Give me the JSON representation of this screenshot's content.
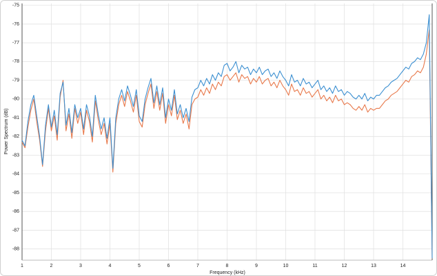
{
  "chart_data": {
    "type": "line",
    "xlabel": "Frequency (kHz)",
    "ylabel": "Power Spectrum (dB)",
    "x": [
      1.0,
      1.1,
      1.2,
      1.3,
      1.4,
      1.5,
      1.6,
      1.7,
      1.8,
      1.9,
      2.0,
      2.1,
      2.2,
      2.3,
      2.4,
      2.5,
      2.6,
      2.7,
      2.8,
      2.9,
      3.0,
      3.1,
      3.2,
      3.3,
      3.4,
      3.5,
      3.6,
      3.7,
      3.8,
      3.9,
      4.0,
      4.1,
      4.2,
      4.3,
      4.4,
      4.5,
      4.6,
      4.7,
      4.8,
      4.9,
      5.0,
      5.1,
      5.2,
      5.3,
      5.4,
      5.5,
      5.6,
      5.7,
      5.8,
      5.9,
      6.0,
      6.1,
      6.2,
      6.3,
      6.4,
      6.5,
      6.6,
      6.7,
      6.8,
      6.9,
      7.0,
      7.1,
      7.2,
      7.3,
      7.4,
      7.5,
      7.6,
      7.7,
      7.8,
      7.9,
      8.0,
      8.1,
      8.2,
      8.3,
      8.4,
      8.5,
      8.6,
      8.7,
      8.8,
      8.9,
      9.0,
      9.1,
      9.2,
      9.3,
      9.4,
      9.5,
      9.6,
      9.7,
      9.8,
      9.9,
      10.0,
      10.1,
      10.2,
      10.3,
      10.4,
      10.5,
      10.6,
      10.7,
      10.8,
      10.9,
      11.0,
      11.1,
      11.2,
      11.3,
      11.4,
      11.5,
      11.6,
      11.7,
      11.8,
      11.9,
      12.0,
      12.1,
      12.2,
      12.3,
      12.4,
      12.5,
      12.6,
      12.7,
      12.8,
      12.9,
      13.0,
      13.1,
      13.2,
      13.3,
      13.4,
      13.5,
      13.6,
      13.7,
      13.8,
      13.9,
      14.0,
      14.1,
      14.2,
      14.3,
      14.4,
      14.5,
      14.6,
      14.7,
      14.8,
      14.9,
      15.0
    ],
    "series": [
      {
        "color": "#3b8fd1",
        "values": [
          -82.2,
          -82.5,
          -81.2,
          -80.3,
          -79.8,
          -80.9,
          -82.0,
          -83.5,
          -81.4,
          -80.3,
          -81.5,
          -80.6,
          -81.9,
          -79.7,
          -79.1,
          -81.4,
          -80.5,
          -81.8,
          -80.3,
          -81.0,
          -80.5,
          -81.6,
          -80.3,
          -80.9,
          -82.0,
          -79.8,
          -80.8,
          -81.6,
          -81.0,
          -82.1,
          -81.0,
          -83.7,
          -81.0,
          -80.0,
          -79.5,
          -80.1,
          -79.3,
          -79.8,
          -80.4,
          -79.5,
          -80.9,
          -81.2,
          -80.0,
          -79.4,
          -78.9,
          -80.2,
          -79.3,
          -80.3,
          -79.4,
          -81.0,
          -80.0,
          -80.6,
          -79.5,
          -80.8,
          -80.3,
          -81.0,
          -80.5,
          -81.2,
          -79.9,
          -79.5,
          -79.4,
          -79.0,
          -79.3,
          -78.9,
          -79.2,
          -78.7,
          -79.0,
          -78.6,
          -78.8,
          -78.2,
          -78.1,
          -78.5,
          -78.3,
          -78.0,
          -78.6,
          -78.2,
          -78.4,
          -78.3,
          -78.7,
          -78.4,
          -78.6,
          -78.3,
          -78.7,
          -78.5,
          -78.4,
          -78.8,
          -78.6,
          -78.9,
          -78.5,
          -78.8,
          -79.0,
          -79.3,
          -78.7,
          -79.1,
          -79.0,
          -79.3,
          -78.9,
          -79.2,
          -79.1,
          -79.4,
          -79.2,
          -79.0,
          -79.5,
          -79.3,
          -79.6,
          -79.4,
          -79.7,
          -79.3,
          -79.6,
          -79.5,
          -79.8,
          -79.6,
          -79.7,
          -79.9,
          -80.0,
          -79.8,
          -80.0,
          -79.7,
          -80.1,
          -79.9,
          -80.0,
          -79.8,
          -79.8,
          -79.6,
          -79.4,
          -79.3,
          -79.1,
          -79.0,
          -78.9,
          -78.7,
          -78.5,
          -78.3,
          -78.4,
          -78.1,
          -78.0,
          -77.8,
          -77.9,
          -77.6,
          -77.0,
          -75.5,
          -88.5
        ]
      },
      {
        "color": "#e8784a",
        "values": [
          -82.3,
          -82.6,
          -81.5,
          -80.6,
          -80.0,
          -81.2,
          -82.2,
          -83.6,
          -81.7,
          -80.5,
          -81.7,
          -80.9,
          -82.2,
          -79.9,
          -79.0,
          -81.7,
          -80.8,
          -82.1,
          -80.5,
          -81.3,
          -80.7,
          -81.9,
          -80.6,
          -81.2,
          -82.3,
          -80.1,
          -81.1,
          -81.9,
          -81.3,
          -82.4,
          -81.3,
          -83.9,
          -81.3,
          -80.3,
          -79.8,
          -80.4,
          -79.6,
          -80.1,
          -80.7,
          -79.8,
          -81.2,
          -81.5,
          -80.3,
          -79.7,
          -79.2,
          -80.5,
          -79.6,
          -80.6,
          -79.7,
          -81.3,
          -80.3,
          -80.9,
          -79.8,
          -81.1,
          -80.6,
          -81.3,
          -80.8,
          -81.6,
          -80.3,
          -80.0,
          -79.9,
          -79.5,
          -79.8,
          -79.4,
          -79.7,
          -79.2,
          -79.5,
          -79.1,
          -79.3,
          -78.8,
          -78.7,
          -79.0,
          -78.8,
          -78.6,
          -79.1,
          -78.7,
          -78.9,
          -78.8,
          -79.2,
          -78.9,
          -79.1,
          -78.8,
          -79.2,
          -79.0,
          -78.9,
          -79.3,
          -79.1,
          -79.4,
          -79.0,
          -79.3,
          -79.5,
          -79.8,
          -79.2,
          -79.6,
          -79.5,
          -79.8,
          -79.4,
          -79.7,
          -79.6,
          -79.9,
          -79.7,
          -79.5,
          -80.0,
          -79.8,
          -80.1,
          -79.9,
          -80.2,
          -79.8,
          -80.1,
          -80.0,
          -80.3,
          -80.2,
          -80.3,
          -80.5,
          -80.6,
          -80.4,
          -80.6,
          -80.3,
          -80.7,
          -80.5,
          -80.6,
          -80.5,
          -80.5,
          -80.3,
          -80.1,
          -80.0,
          -79.8,
          -79.7,
          -79.6,
          -79.4,
          -79.2,
          -79.0,
          -79.1,
          -78.8,
          -78.7,
          -78.5,
          -78.6,
          -78.3,
          -77.6,
          -76.3,
          -88.5
        ]
      }
    ],
    "xlim": [
      1,
      15
    ],
    "xticks": [
      1,
      2,
      3,
      4,
      5,
      6,
      7,
      8,
      9,
      10,
      11,
      12,
      13,
      14
    ],
    "ylim": [
      -88.6,
      -74.9
    ],
    "yticks": [
      -75,
      -76,
      -77,
      -78,
      -79,
      -80,
      -81,
      -82,
      -83,
      -84,
      -85,
      -86,
      -87,
      -88
    ],
    "grid": true
  }
}
